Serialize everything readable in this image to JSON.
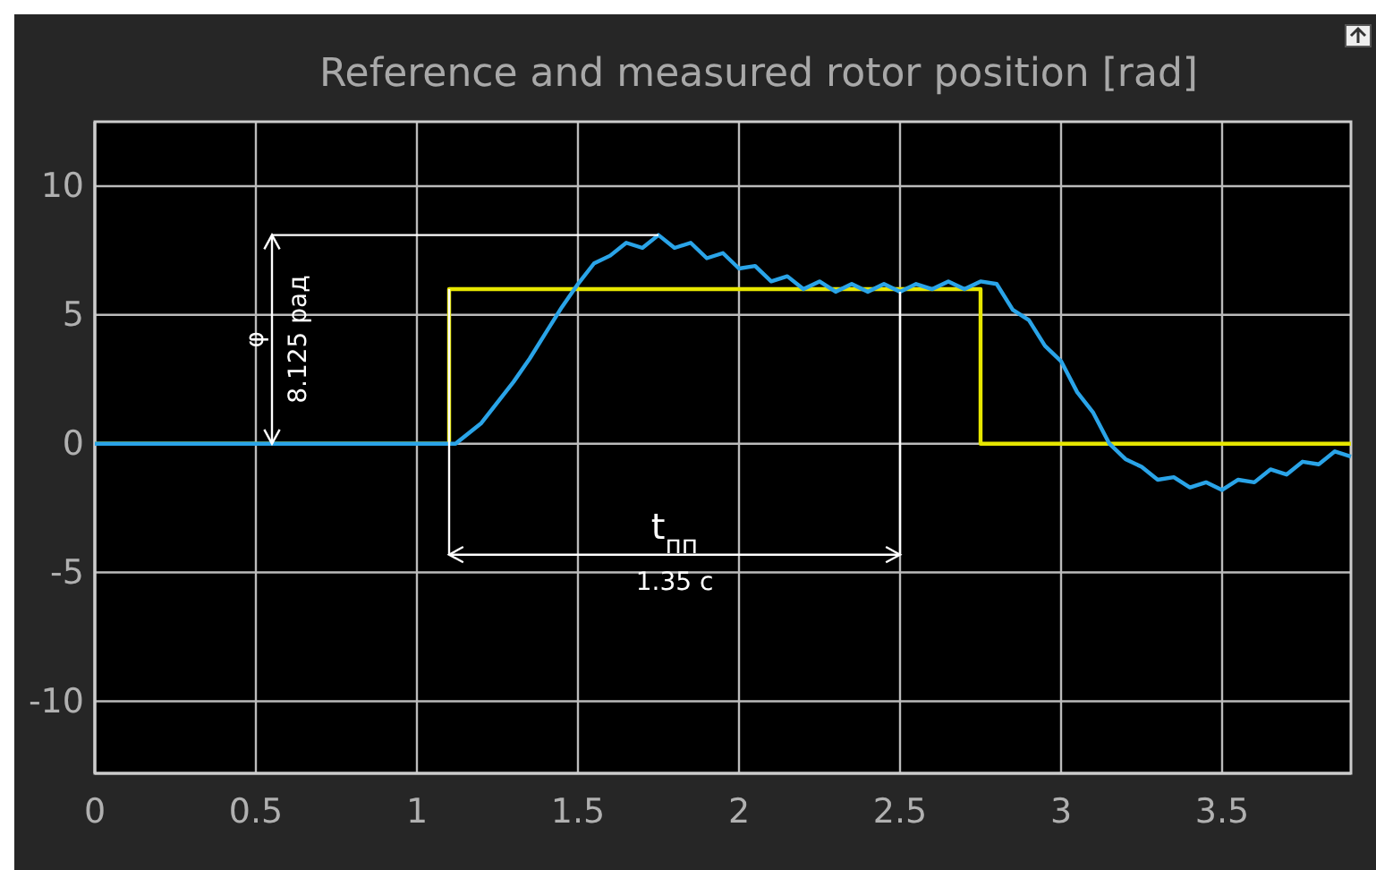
{
  "chart_data": {
    "type": "line",
    "title": "Reference and measured rotor position [rad]",
    "xlim": [
      0,
      3.9
    ],
    "ylim": [
      -12.8,
      12.5
    ],
    "xticks": [
      0,
      0.5,
      1,
      1.5,
      2,
      2.5,
      3,
      3.5
    ],
    "yticks": [
      -10,
      -5,
      0,
      5,
      10
    ],
    "grid": true,
    "series": [
      {
        "color": "#e6e600",
        "x": [
          0,
          1.1,
          1.1,
          2.75,
          2.75,
          3.9
        ],
        "values": [
          0,
          0,
          6,
          6,
          0,
          0
        ]
      },
      {
        "color": "#2aa4e8",
        "x": [
          0,
          1.1,
          1.12,
          1.2,
          1.25,
          1.3,
          1.35,
          1.4,
          1.45,
          1.5,
          1.55,
          1.6,
          1.65,
          1.7,
          1.75,
          1.8,
          1.85,
          1.9,
          1.95,
          2.0,
          2.05,
          2.1,
          2.15,
          2.2,
          2.25,
          2.3,
          2.35,
          2.4,
          2.45,
          2.5,
          2.55,
          2.6,
          2.65,
          2.7,
          2.75,
          2.8,
          2.85,
          2.9,
          2.95,
          3.0,
          3.05,
          3.1,
          3.15,
          3.2,
          3.25,
          3.3,
          3.35,
          3.4,
          3.45,
          3.5,
          3.55,
          3.6,
          3.65,
          3.7,
          3.75,
          3.8,
          3.85,
          3.9
        ],
        "values": [
          0,
          0,
          0,
          0.8,
          1.6,
          2.4,
          3.3,
          4.3,
          5.3,
          6.2,
          7.0,
          7.3,
          7.8,
          7.6,
          8.1,
          7.6,
          7.8,
          7.2,
          7.4,
          6.8,
          6.9,
          6.3,
          6.5,
          6.0,
          6.3,
          5.9,
          6.2,
          5.9,
          6.2,
          5.9,
          6.2,
          6.0,
          6.3,
          6.0,
          6.3,
          6.2,
          5.2,
          4.8,
          3.8,
          3.2,
          2.0,
          1.2,
          0.0,
          -0.6,
          -0.9,
          -1.4,
          -1.3,
          -1.7,
          -1.5,
          -1.8,
          -1.4,
          -1.5,
          -1.0,
          -1.2,
          -0.7,
          -0.8,
          -0.3,
          -0.5
        ]
      }
    ],
    "annotations": [
      "φ",
      "8.125 рад",
      "t$_{пп}$",
      "1.35 с"
    ]
  }
}
